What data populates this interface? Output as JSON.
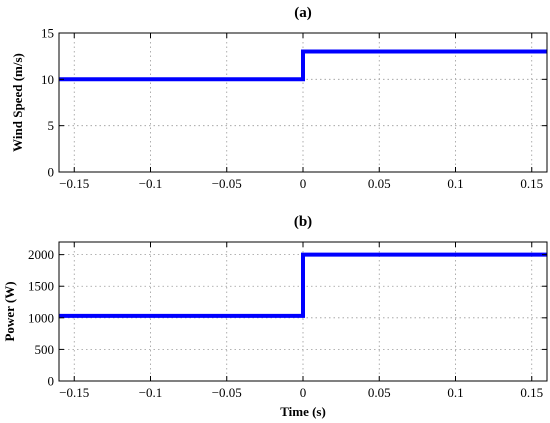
{
  "chart_data": [
    {
      "type": "line",
      "title": "(a)",
      "xlabel": "",
      "ylabel": "Wind Speed (m/s)",
      "xlim": [
        -0.16,
        0.16
      ],
      "ylim": [
        0,
        15
      ],
      "xticks": [
        -0.15,
        -0.1,
        -0.05,
        0,
        0.05,
        0.1,
        0.15
      ],
      "xtick_labels": [
        "−0.15",
        "−0.1",
        "−0.05",
        "0",
        "0.05",
        "0.1",
        "0.15"
      ],
      "yticks": [
        0,
        5,
        10,
        15
      ],
      "ytick_labels": [
        "0",
        "5",
        "10",
        "15"
      ],
      "grid": true,
      "series": [
        {
          "x": [
            -0.16,
            0,
            0,
            0.16
          ],
          "y": [
            10,
            10,
            13,
            13
          ],
          "color": "#0000ff"
        }
      ]
    },
    {
      "type": "line",
      "title": "(b)",
      "xlabel": "Time (s)",
      "ylabel": "Power (W)",
      "xlim": [
        -0.16,
        0.16
      ],
      "ylim": [
        0,
        2200
      ],
      "xticks": [
        -0.15,
        -0.1,
        -0.05,
        0,
        0.05,
        0.1,
        0.15
      ],
      "xtick_labels": [
        "−0.15",
        "−0.1",
        "−0.05",
        "0",
        "0.05",
        "0.1",
        "0.15"
      ],
      "yticks": [
        0,
        500,
        1000,
        1500,
        2000
      ],
      "ytick_labels": [
        "0",
        "500",
        "1000",
        "1500",
        "2000"
      ],
      "grid": true,
      "series": [
        {
          "x": [
            -0.16,
            0,
            0,
            0.16
          ],
          "y": [
            1030,
            1030,
            2000,
            2000
          ],
          "color": "#0000ff"
        }
      ]
    }
  ]
}
